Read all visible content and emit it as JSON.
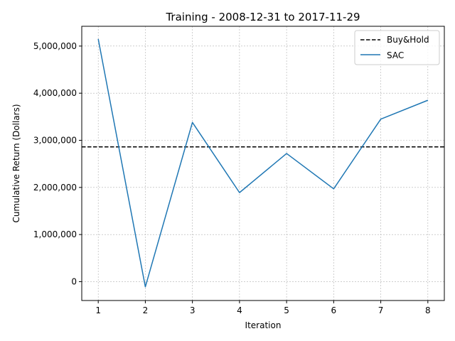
{
  "chart_data": {
    "type": "line",
    "title": "Training - 2008-12-31 to 2017-11-29",
    "xlabel": "Iteration",
    "ylabel": "Cumulative Return (Dollars)",
    "x": [
      1,
      2,
      3,
      4,
      5,
      6,
      7,
      8
    ],
    "xlim": [
      0.65,
      8.35
    ],
    "ylim": [
      -400000,
      5420000
    ],
    "xticks": [
      1,
      2,
      3,
      4,
      5,
      6,
      7,
      8
    ],
    "yticks": [
      0,
      1000000,
      2000000,
      3000000,
      4000000,
      5000000
    ],
    "ytick_labels": [
      "0",
      "1,000,000",
      "2,000,000",
      "3,000,000",
      "4,000,000",
      "5,000,000"
    ],
    "grid": true,
    "legend_position": "top-right",
    "series": [
      {
        "name": "Buy&Hold",
        "style": "dashed",
        "color": "#000000",
        "values": [
          2860000,
          2860000,
          2860000,
          2860000,
          2860000,
          2860000,
          2860000,
          2860000
        ]
      },
      {
        "name": "SAC",
        "style": "solid",
        "color": "#1f77b4",
        "values": [
          5150000,
          -110000,
          3380000,
          1890000,
          2720000,
          1970000,
          3450000,
          3850000
        ]
      }
    ]
  }
}
